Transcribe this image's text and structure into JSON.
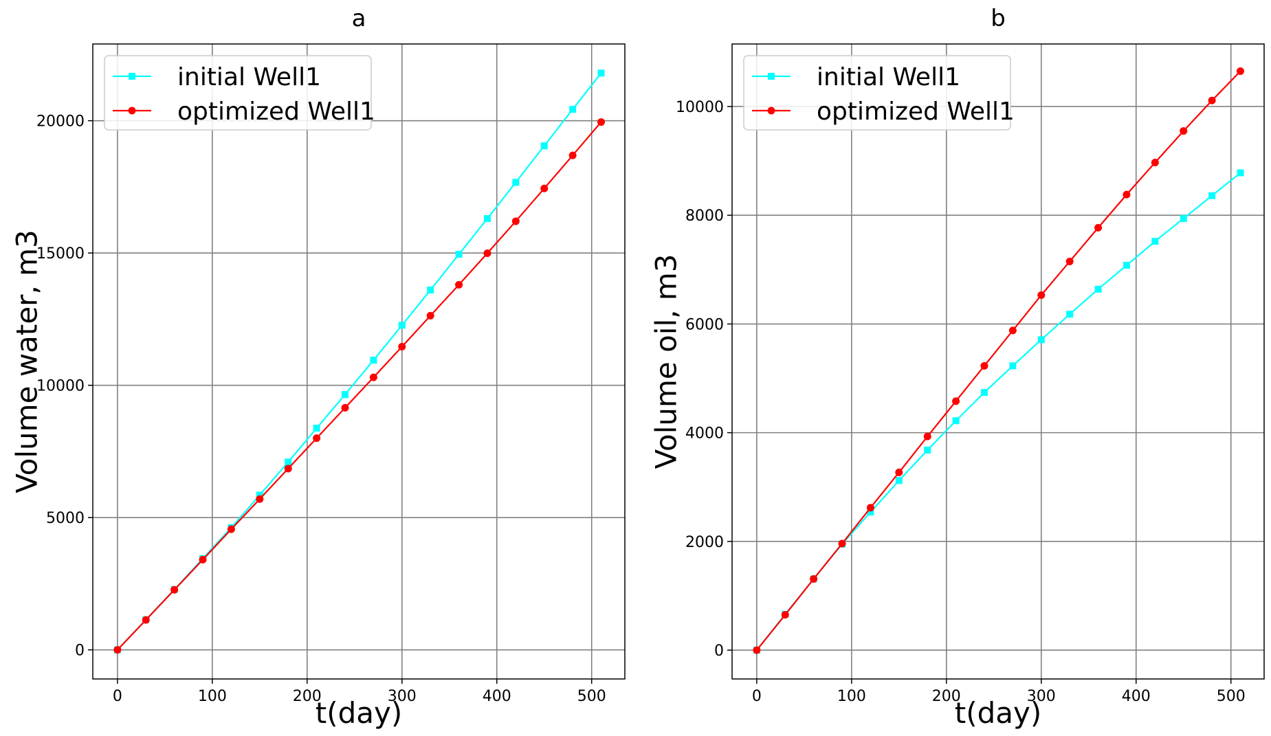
{
  "chart_data": [
    {
      "type": "line",
      "title": "a",
      "xlabel": "t(day)",
      "ylabel": "Volume water, m3",
      "xlim": [
        -26,
        535
      ],
      "ylim": [
        -1100,
        22900
      ],
      "xticks": [
        0,
        100,
        200,
        300,
        400,
        500
      ],
      "yticks": [
        0,
        5000,
        10000,
        15000,
        20000
      ],
      "grid": true,
      "legend": "top-left",
      "series": [
        {
          "name": "initial Well1",
          "color": "#00ffff",
          "marker": "square",
          "x": [
            0,
            30,
            60,
            90,
            120,
            150,
            180,
            210,
            240,
            270,
            300,
            330,
            360,
            390,
            420,
            450,
            480,
            510
          ],
          "y": [
            0,
            1140,
            2280,
            3450,
            4620,
            5850,
            7100,
            8380,
            9650,
            10950,
            12270,
            13600,
            14950,
            16300,
            17670,
            19050,
            20430,
            21800
          ]
        },
        {
          "name": "optimized Well1",
          "color": "#ff0000",
          "marker": "circle",
          "x": [
            0,
            30,
            60,
            90,
            120,
            150,
            180,
            210,
            240,
            270,
            300,
            330,
            360,
            390,
            420,
            450,
            480,
            510
          ],
          "y": [
            0,
            1130,
            2270,
            3410,
            4560,
            5700,
            6850,
            8000,
            9150,
            10300,
            11460,
            12630,
            13800,
            14990,
            16200,
            17440,
            18690,
            19950
          ]
        }
      ]
    },
    {
      "type": "line",
      "title": "b",
      "xlabel": "t(day)",
      "ylabel": "Volume oil, m3",
      "xlim": [
        -26,
        535
      ],
      "ylim": [
        -530,
        11150
      ],
      "xticks": [
        0,
        100,
        200,
        300,
        400,
        500
      ],
      "yticks": [
        0,
        2000,
        4000,
        6000,
        8000,
        10000
      ],
      "grid": true,
      "legend": "top-left",
      "series": [
        {
          "name": "initial Well1",
          "color": "#00ffff",
          "marker": "square",
          "x": [
            0,
            30,
            60,
            90,
            120,
            150,
            180,
            210,
            240,
            270,
            300,
            330,
            360,
            390,
            420,
            450,
            480,
            510
          ],
          "y": [
            0,
            660,
            1310,
            1950,
            2540,
            3120,
            3680,
            4220,
            4740,
            5230,
            5710,
            6180,
            6640,
            7080,
            7520,
            7940,
            8360,
            8780
          ]
        },
        {
          "name": "optimized Well1",
          "color": "#ff0000",
          "marker": "circle",
          "x": [
            0,
            30,
            60,
            90,
            120,
            150,
            180,
            210,
            240,
            270,
            300,
            330,
            360,
            390,
            420,
            450,
            480,
            510
          ],
          "y": [
            0,
            650,
            1310,
            1960,
            2620,
            3270,
            3930,
            4580,
            5230,
            5880,
            6530,
            7150,
            7770,
            8380,
            8970,
            9550,
            10110,
            10650
          ]
        }
      ]
    }
  ]
}
